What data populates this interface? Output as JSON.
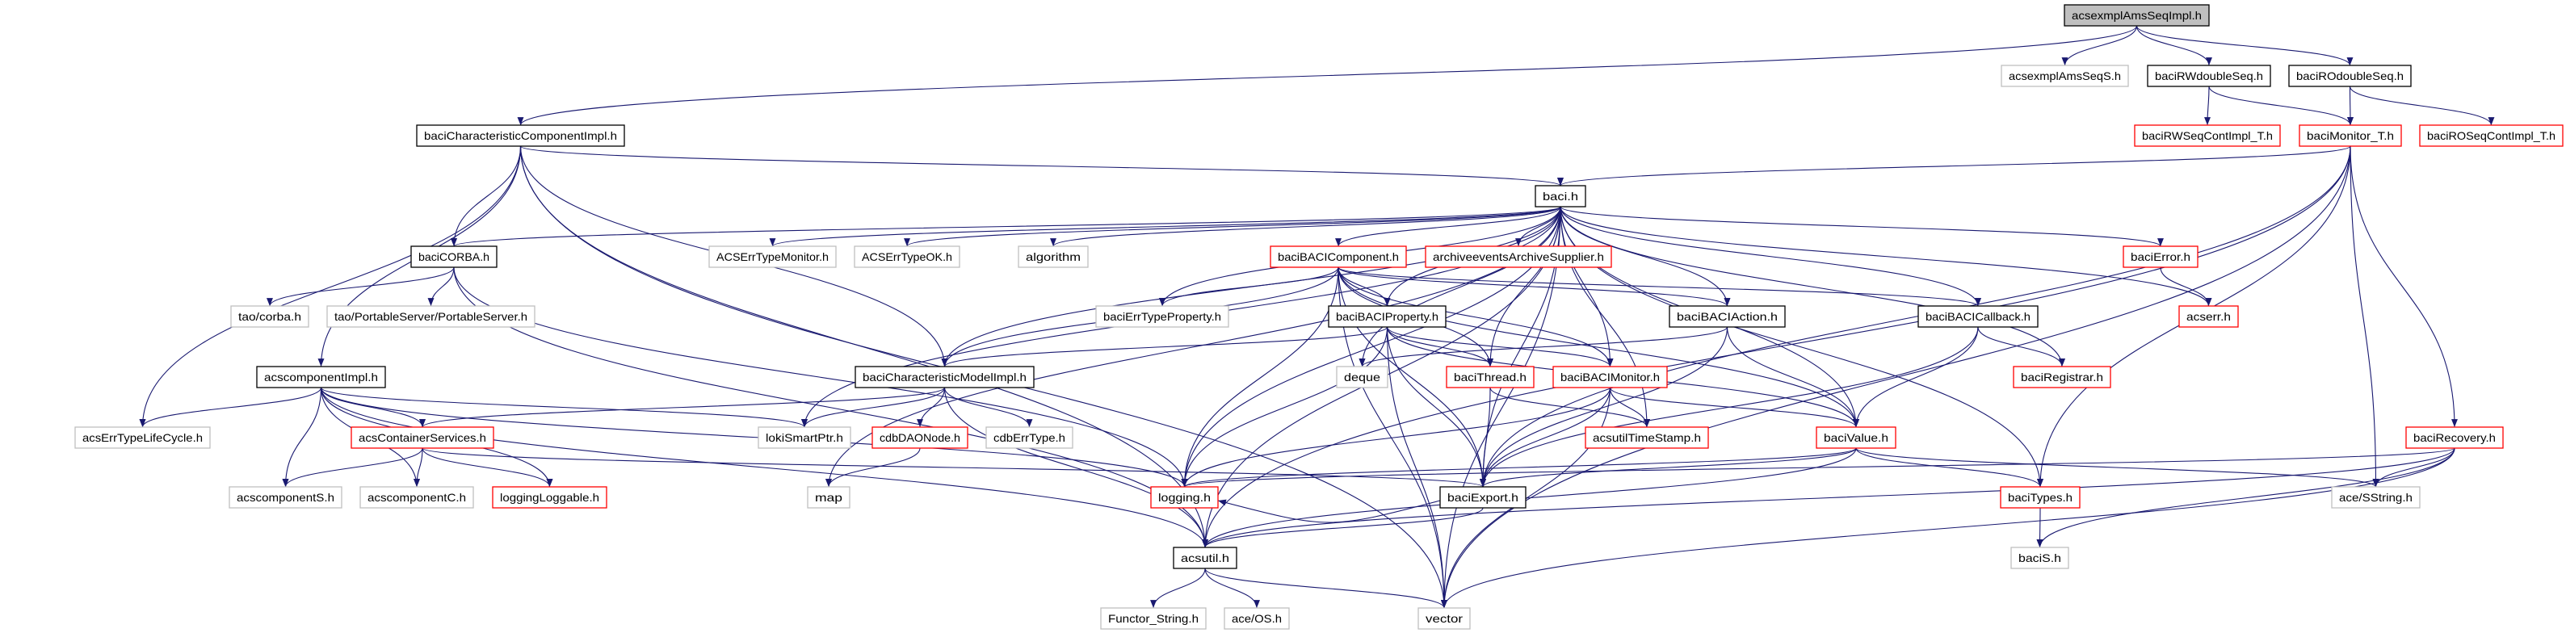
{
  "diagram": {
    "type": "include-dependency-graph",
    "edge_color": "#191970",
    "kind_colors": {
      "root": "#000000",
      "documented": "#000000",
      "truncated": "#ff0000",
      "external": "#bfbfbf"
    },
    "root_fill": "#bfbfbf",
    "nodes": [
      {
        "id": "root",
        "label": "acsexmplAmsSeqImpl.h",
        "kind": "root"
      },
      {
        "id": "amsS",
        "label": "acsexmplAmsSeqS.h",
        "kind": "external"
      },
      {
        "id": "rwds",
        "label": "baciRWdoubleSeq.h",
        "kind": "documented"
      },
      {
        "id": "rods",
        "label": "baciROdoubleSeq.h",
        "kind": "documented"
      },
      {
        "id": "rwsci",
        "label": "baciRWSeqContImpl_T.h",
        "kind": "truncated"
      },
      {
        "id": "mont",
        "label": "baciMonitor_T.h",
        "kind": "truncated"
      },
      {
        "id": "rosci",
        "label": "baciROSeqContImpl_T.h",
        "kind": "truncated"
      },
      {
        "id": "cci",
        "label": "baciCharacteristicComponentImpl.h",
        "kind": "documented"
      },
      {
        "id": "baci",
        "label": "baci.h",
        "kind": "documented"
      },
      {
        "id": "corba",
        "label": "baciCORBA.h",
        "kind": "documented"
      },
      {
        "id": "etm",
        "label": "ACSErrTypeMonitor.h",
        "kind": "external"
      },
      {
        "id": "etok",
        "label": "ACSErrTypeOK.h",
        "kind": "external"
      },
      {
        "id": "algo",
        "label": "algorithm",
        "kind": "external"
      },
      {
        "id": "bcomp",
        "label": "baciBACIComponent.h",
        "kind": "truncated"
      },
      {
        "id": "arch",
        "label": "archiveeventsArchiveSupplier.h",
        "kind": "truncated"
      },
      {
        "id": "berr",
        "label": "baciError.h",
        "kind": "truncated"
      },
      {
        "id": "taoc",
        "label": "tao/corba.h",
        "kind": "external"
      },
      {
        "id": "taops",
        "label": "tao/PortableServer/PortableServer.h",
        "kind": "external"
      },
      {
        "id": "etp",
        "label": "baciErrTypeProperty.h",
        "kind": "external"
      },
      {
        "id": "bprop",
        "label": "baciBACIProperty.h",
        "kind": "documented"
      },
      {
        "id": "bact",
        "label": "baciBACIAction.h",
        "kind": "documented"
      },
      {
        "id": "bcb",
        "label": "baciBACICallback.h",
        "kind": "documented"
      },
      {
        "id": "acserr",
        "label": "acserr.h",
        "kind": "truncated"
      },
      {
        "id": "compimpl",
        "label": "acscomponentImpl.h",
        "kind": "documented"
      },
      {
        "id": "cmi",
        "label": "baciCharacteristicModelImpl.h",
        "kind": "documented"
      },
      {
        "id": "deque",
        "label": "deque",
        "kind": "external"
      },
      {
        "id": "thr",
        "label": "baciThread.h",
        "kind": "truncated"
      },
      {
        "id": "bmon",
        "label": "baciBACIMonitor.h",
        "kind": "truncated"
      },
      {
        "id": "reg",
        "label": "baciRegistrar.h",
        "kind": "truncated"
      },
      {
        "id": "lc",
        "label": "acsErrTypeLifeCycle.h",
        "kind": "external"
      },
      {
        "id": "cs",
        "label": "acsContainerServices.h",
        "kind": "truncated"
      },
      {
        "id": "loki",
        "label": "lokiSmartPtr.h",
        "kind": "external"
      },
      {
        "id": "dao",
        "label": "cdbDAONode.h",
        "kind": "truncated"
      },
      {
        "id": "cdbet",
        "label": "cdbErrType.h",
        "kind": "external"
      },
      {
        "id": "ts",
        "label": "acsutilTimeStamp.h",
        "kind": "truncated"
      },
      {
        "id": "val",
        "label": "baciValue.h",
        "kind": "truncated"
      },
      {
        "id": "rec",
        "label": "baciRecovery.h",
        "kind": "truncated"
      },
      {
        "id": "compS",
        "label": "acscomponentS.h",
        "kind": "external"
      },
      {
        "id": "compC",
        "label": "acscomponentC.h",
        "kind": "external"
      },
      {
        "id": "ll",
        "label": "loggingLoggable.h",
        "kind": "truncated"
      },
      {
        "id": "map",
        "label": "map",
        "kind": "external"
      },
      {
        "id": "log",
        "label": "logging.h",
        "kind": "truncated"
      },
      {
        "id": "exp",
        "label": "baciExport.h",
        "kind": "documented"
      },
      {
        "id": "types",
        "label": "baciTypes.h",
        "kind": "truncated"
      },
      {
        "id": "sstr",
        "label": "ace/SString.h",
        "kind": "external"
      },
      {
        "id": "util",
        "label": "acsutil.h",
        "kind": "documented"
      },
      {
        "id": "bS",
        "label": "baciS.h",
        "kind": "external"
      },
      {
        "id": "fs",
        "label": "Functor_String.h",
        "kind": "external"
      },
      {
        "id": "os",
        "label": "ace/OS.h",
        "kind": "external"
      },
      {
        "id": "vec",
        "label": "vector",
        "kind": "external"
      }
    ],
    "edges": [
      [
        "root",
        "cci"
      ],
      [
        "root",
        "amsS"
      ],
      [
        "root",
        "rwds"
      ],
      [
        "root",
        "rods"
      ],
      [
        "rwds",
        "rwsci"
      ],
      [
        "rwds",
        "mont"
      ],
      [
        "rods",
        "mont"
      ],
      [
        "rods",
        "rosci"
      ],
      [
        "mont",
        "baci"
      ],
      [
        "mont",
        "exp"
      ],
      [
        "mont",
        "util"
      ],
      [
        "mont",
        "sstr"
      ],
      [
        "mont",
        "rec"
      ],
      [
        "mont",
        "types"
      ],
      [
        "mont",
        "vec"
      ],
      [
        "cci",
        "baci"
      ],
      [
        "cci",
        "corba"
      ],
      [
        "cci",
        "compimpl"
      ],
      [
        "cci",
        "cmi"
      ],
      [
        "cci",
        "lc"
      ],
      [
        "cci",
        "util"
      ],
      [
        "cci",
        "vec"
      ],
      [
        "baci",
        "corba"
      ],
      [
        "baci",
        "etm"
      ],
      [
        "baci",
        "etok"
      ],
      [
        "baci",
        "algo"
      ],
      [
        "baci",
        "bcomp"
      ],
      [
        "baci",
        "arch"
      ],
      [
        "baci",
        "etp"
      ],
      [
        "baci",
        "bprop"
      ],
      [
        "baci",
        "bact"
      ],
      [
        "baci",
        "bcb"
      ],
      [
        "baci",
        "berr"
      ],
      [
        "baci",
        "acserr"
      ],
      [
        "baci",
        "reg"
      ],
      [
        "baci",
        "val"
      ],
      [
        "baci",
        "thr"
      ],
      [
        "baci",
        "bmon"
      ],
      [
        "baci",
        "exp"
      ],
      [
        "baci",
        "ts"
      ],
      [
        "baci",
        "types"
      ],
      [
        "baci",
        "log"
      ],
      [
        "baci",
        "deque"
      ],
      [
        "baci",
        "map"
      ],
      [
        "baci",
        "loki"
      ],
      [
        "baci",
        "util"
      ],
      [
        "baci",
        "vec"
      ],
      [
        "baci",
        "cmi"
      ],
      [
        "corba",
        "taoc"
      ],
      [
        "corba",
        "taops"
      ],
      [
        "corba",
        "util"
      ],
      [
        "corba",
        "log"
      ],
      [
        "bcomp",
        "etp"
      ],
      [
        "bcomp",
        "bprop"
      ],
      [
        "bcomp",
        "cmi"
      ],
      [
        "bcomp",
        "thr"
      ],
      [
        "bcomp",
        "bmon"
      ],
      [
        "bcomp",
        "bact"
      ],
      [
        "bcomp",
        "bcb"
      ],
      [
        "bcomp",
        "val"
      ],
      [
        "bcomp",
        "exp"
      ],
      [
        "bcomp",
        "log"
      ],
      [
        "bcomp",
        "vec"
      ],
      [
        "bprop",
        "cmi"
      ],
      [
        "bprop",
        "thr"
      ],
      [
        "bprop",
        "bmon"
      ],
      [
        "bprop",
        "val"
      ],
      [
        "bprop",
        "exp"
      ],
      [
        "bprop",
        "log"
      ],
      [
        "bprop",
        "vec"
      ],
      [
        "bact",
        "deque"
      ],
      [
        "bact",
        "val"
      ],
      [
        "bact",
        "exp"
      ],
      [
        "bcb",
        "reg"
      ],
      [
        "bcb",
        "val"
      ],
      [
        "bcb",
        "exp"
      ],
      [
        "berr",
        "acserr"
      ],
      [
        "cmi",
        "cs"
      ],
      [
        "cmi",
        "loki"
      ],
      [
        "cmi",
        "dao"
      ],
      [
        "cmi",
        "cdbet"
      ],
      [
        "cmi",
        "util"
      ],
      [
        "dao",
        "map"
      ],
      [
        "compimpl",
        "lc"
      ],
      [
        "compimpl",
        "cs"
      ],
      [
        "compimpl",
        "compS"
      ],
      [
        "compimpl",
        "compC"
      ],
      [
        "compimpl",
        "ll"
      ],
      [
        "compimpl",
        "loki"
      ],
      [
        "compimpl",
        "log"
      ],
      [
        "compimpl",
        "util"
      ],
      [
        "cs",
        "compS"
      ],
      [
        "cs",
        "compC"
      ],
      [
        "cs",
        "ll"
      ],
      [
        "cs",
        "exp"
      ],
      [
        "thr",
        "exp"
      ],
      [
        "thr",
        "ts"
      ],
      [
        "bmon",
        "ts"
      ],
      [
        "bmon",
        "val"
      ],
      [
        "bmon",
        "exp"
      ],
      [
        "bmon",
        "log"
      ],
      [
        "bmon",
        "vec"
      ],
      [
        "val",
        "types"
      ],
      [
        "val",
        "sstr"
      ],
      [
        "val",
        "exp"
      ],
      [
        "val",
        "util"
      ],
      [
        "val",
        "log"
      ],
      [
        "types",
        "bS"
      ],
      [
        "exp",
        "util"
      ],
      [
        "exp",
        "log"
      ],
      [
        "util",
        "fs"
      ],
      [
        "util",
        "os"
      ],
      [
        "util",
        "vec"
      ],
      [
        "rec",
        "sstr"
      ],
      [
        "rec",
        "util"
      ],
      [
        "rec",
        "bS"
      ],
      [
        "rec",
        "vec"
      ],
      [
        "rec",
        "log"
      ]
    ]
  }
}
